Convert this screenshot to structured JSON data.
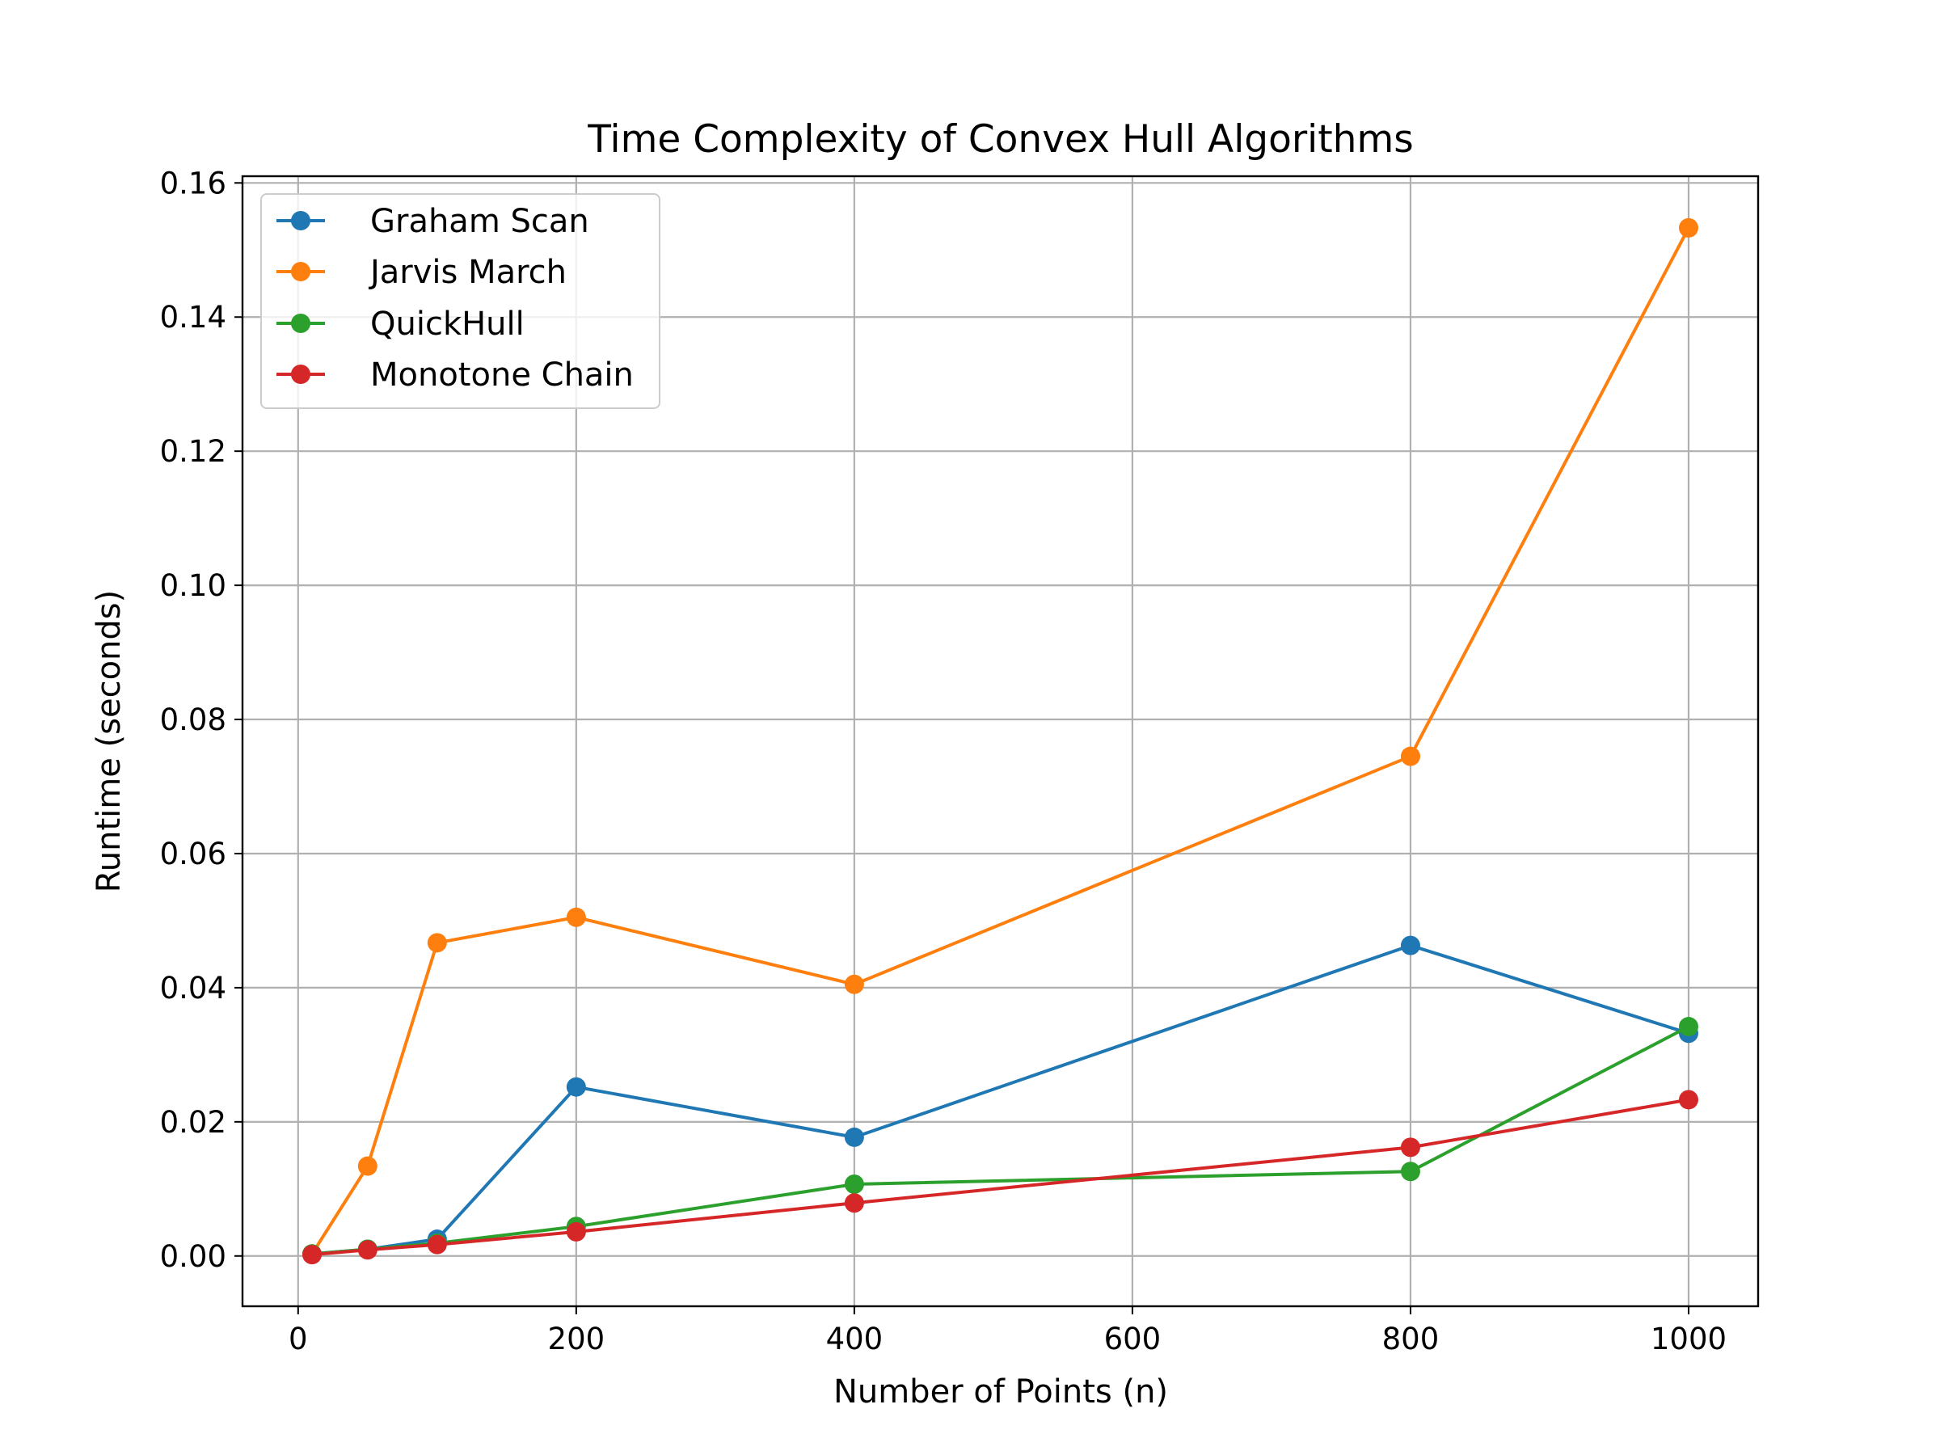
{
  "chart_data": {
    "type": "line",
    "title": "Time Complexity of Convex Hull Algorithms",
    "xlabel": "Number of Points (n)",
    "ylabel": "Runtime (seconds)",
    "x": [
      10,
      50,
      100,
      200,
      400,
      800,
      1000
    ],
    "xlim": [
      -40,
      1050
    ],
    "ylim": [
      -0.0075,
      0.161
    ],
    "xticks": [
      0,
      200,
      400,
      600,
      800,
      1000
    ],
    "xtick_labels": [
      "0",
      "200",
      "400",
      "600",
      "800",
      "1000"
    ],
    "yticks": [
      0,
      0.02,
      0.04,
      0.06,
      0.08,
      0.1,
      0.12,
      0.14,
      0.16
    ],
    "ytick_labels": [
      "0.00",
      "0.02",
      "0.04",
      "0.06",
      "0.08",
      "0.10",
      "0.12",
      "0.14",
      "0.16"
    ],
    "grid": true,
    "legend_position": "upper-left",
    "series": [
      {
        "name": "Graham Scan",
        "color": "#1f77b4",
        "values": [
          0.0003,
          0.001,
          0.0025,
          0.0252,
          0.0177,
          0.0463,
          0.0332
        ]
      },
      {
        "name": "Jarvis March",
        "color": "#ff7f0e",
        "values": [
          0.0003,
          0.0134,
          0.0467,
          0.0505,
          0.0405,
          0.0745,
          0.1533
        ]
      },
      {
        "name": "QuickHull",
        "color": "#2ca02c",
        "values": [
          0.0003,
          0.001,
          0.0019,
          0.0044,
          0.0107,
          0.0126,
          0.0342
        ]
      },
      {
        "name": "Monotone Chain",
        "color": "#d62728",
        "values": [
          0.0002,
          0.0009,
          0.0017,
          0.0036,
          0.0079,
          0.0162,
          0.0233
        ]
      }
    ]
  }
}
